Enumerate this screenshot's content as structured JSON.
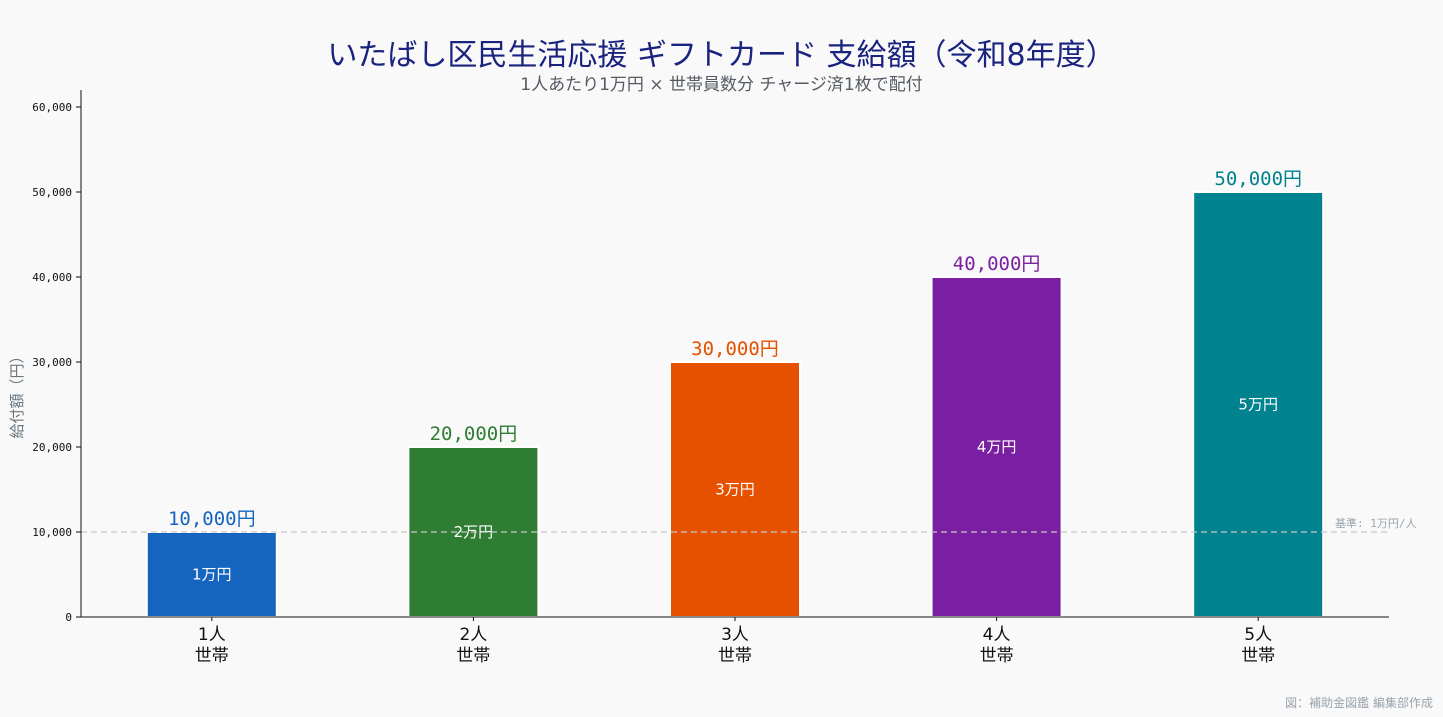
{
  "title": "いたばし区民生活応援 ギフトカード 支給額（令和8年度）",
  "subtitle": "1人あたり1万円 × 世帯員数分 チャージ済1枚で配付",
  "footer": "図：補助金図鑑 編集部作成",
  "chart_data": {
    "type": "bar",
    "categories": [
      [
        "1人",
        "世帯"
      ],
      [
        "2人",
        "世帯"
      ],
      [
        "3人",
        "世帯"
      ],
      [
        "4人",
        "世帯"
      ],
      [
        "5人",
        "世帯"
      ]
    ],
    "values": [
      10000,
      20000,
      30000,
      40000,
      50000
    ],
    "top_labels": [
      "10,000円",
      "20,000円",
      "30,000円",
      "40,000円",
      "50,000円"
    ],
    "inner_labels": [
      "1万円",
      "2万円",
      "3万円",
      "4万円",
      "5万円"
    ],
    "colors": [
      "#1565c0",
      "#2e7d32",
      "#e65100",
      "#7b1fa2",
      "#00838f"
    ],
    "ylabel": "給付額（円）",
    "ylim": [
      0,
      62000
    ],
    "yticks": [
      0,
      10000,
      20000,
      30000,
      40000,
      50000,
      60000
    ],
    "ytick_labels": [
      "0",
      "10,000",
      "20,000",
      "30,000",
      "40,000",
      "50,000",
      "60,000"
    ],
    "reference_line": {
      "value": 10000,
      "label": "基準: 1万円/人",
      "color": "#c8c8c8"
    },
    "grid": false
  }
}
